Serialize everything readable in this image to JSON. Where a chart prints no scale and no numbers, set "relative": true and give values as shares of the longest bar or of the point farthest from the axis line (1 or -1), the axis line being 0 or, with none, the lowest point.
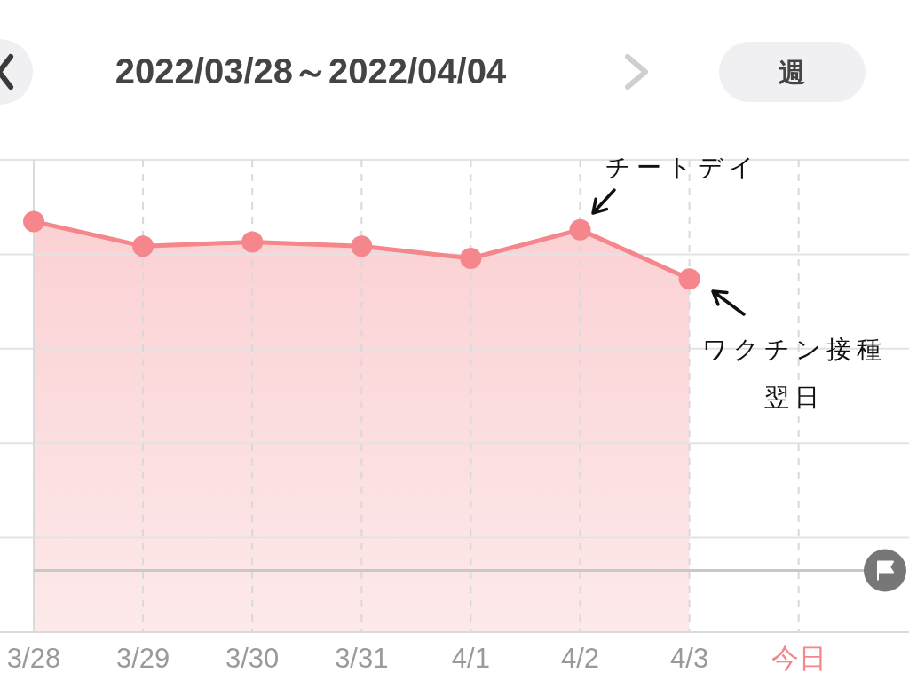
{
  "chart_data": {
    "type": "area",
    "title": "2022/03/28～2022/04/04",
    "categories": [
      "3/28",
      "3/29",
      "3/30",
      "3/31",
      "4/1",
      "4/2",
      "4/3",
      "今日"
    ],
    "series": [
      {
        "color": "#f4868c",
        "values": [
          1,
          0.94,
          0.95,
          0.94,
          0.91,
          0.98,
          0.86,
          null
        ]
      }
    ],
    "relative": true,
    "grid": true,
    "marker": "circle",
    "ref_lines": [
      {
        "axis": "y",
        "value": 0.15,
        "color": "#c8c8c8"
      }
    ],
    "annotations": [
      {
        "text": "チートデイ",
        "x": "4/2",
        "y": 0.98
      },
      {
        "text": "ワクチン接種翌日",
        "x": "4/3",
        "y": 0.86
      },
      "週"
    ]
  }
}
